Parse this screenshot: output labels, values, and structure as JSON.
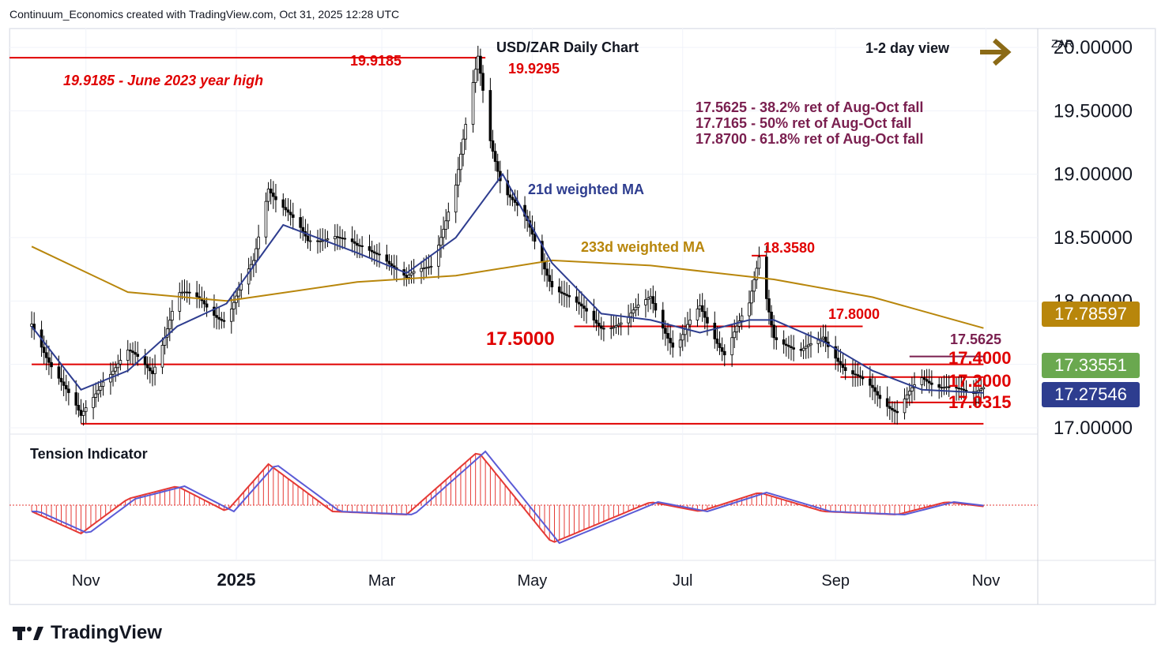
{
  "header": {
    "credit": "Continuum_Economics created with TradingView.com, Oct 31, 2025 12:28 UTC"
  },
  "chart": {
    "title": "USD/ZAR Daily Chart",
    "view_label": "1-2 day view",
    "currency": "ZAR",
    "annotations": {
      "high_value": "19.9185",
      "high_note": "19.9185 - June 2023 year high",
      "peak": "19.9295",
      "fib1": "17.5625 - 38.2% ret of Aug-Oct fall",
      "fib2": "17.7165 - 50% ret of Aug-Oct fall",
      "fib3": "17.8700 - 61.8% ret of Aug-Oct fall",
      "ma21_label": "21d weighted MA",
      "ma233_label": "233d weighted MA",
      "level_18358": "18.3580",
      "level_178": "17.8000",
      "level_175": "17.5000",
      "level_175625": "17.5625",
      "level_174": "17.4000",
      "level_172": "17.2000",
      "level_170315": "17.0315"
    },
    "price_badges": {
      "ma233": "17.78597",
      "last": "17.33551",
      "ma21": "17.27546"
    },
    "tension_label": "Tension Indicator"
  },
  "logo": {
    "text": "TradingView"
  },
  "colors": {
    "candle": "#000000",
    "ma21": "#2e3d8f",
    "ma233": "#b8860b",
    "levels": "#e00000",
    "fib_text": "#7a1f4f",
    "last_badge": "#6aa84f",
    "ma21_badge": "#2e3d8f",
    "ma233_badge": "#b8860b",
    "arrow": "#8b6a16",
    "tension_fill": "#e53935",
    "tension_line": "#5b5bd6"
  },
  "chart_data": {
    "type": "candlestick",
    "title": "USD/ZAR Daily Chart",
    "y_axis": {
      "ticks": [
        "20.00000",
        "19.50000",
        "19.00000",
        "18.50000",
        "18.00000",
        "17.50000",
        "17.00000"
      ],
      "ylim": [
        16.95,
        20.15
      ]
    },
    "x_axis": {
      "ticks": [
        "Nov",
        "2025",
        "Mar",
        "May",
        "Jul",
        "Sep",
        "Nov"
      ]
    },
    "series": [
      {
        "name": "USD/ZAR",
        "points": [
          [
            "2024-10-10",
            17.8
          ],
          [
            "2024-10-20",
            17.45
          ],
          [
            "2024-10-30",
            17.06
          ],
          [
            "2024-11-08",
            17.4
          ],
          [
            "2024-11-18",
            17.58
          ],
          [
            "2024-11-28",
            17.45
          ],
          [
            "2024-12-08",
            18.05
          ],
          [
            "2024-12-18",
            18.0
          ],
          [
            "2024-12-28",
            17.85
          ],
          [
            "2025-01-08",
            18.3
          ],
          [
            "2025-01-14",
            18.92
          ],
          [
            "2025-01-20",
            18.75
          ],
          [
            "2025-01-30",
            18.45
          ],
          [
            "2025-02-09",
            18.55
          ],
          [
            "2025-02-19",
            18.4
          ],
          [
            "2025-03-01",
            18.4
          ],
          [
            "2025-03-11",
            18.15
          ],
          [
            "2025-03-21",
            18.3
          ],
          [
            "2025-03-31",
            18.9
          ],
          [
            "2025-04-09",
            19.92
          ],
          [
            "2025-04-14",
            19.3
          ],
          [
            "2025-04-19",
            18.9
          ],
          [
            "2025-04-29",
            18.6
          ],
          [
            "2025-05-09",
            18.15
          ],
          [
            "2025-05-19",
            17.95
          ],
          [
            "2025-05-29",
            17.82
          ],
          [
            "2025-06-08",
            17.82
          ],
          [
            "2025-06-18",
            18.05
          ],
          [
            "2025-06-28",
            17.6
          ],
          [
            "2025-07-08",
            17.95
          ],
          [
            "2025-07-18",
            17.6
          ],
          [
            "2025-07-28",
            17.95
          ],
          [
            "2025-08-01",
            18.35
          ],
          [
            "2025-08-07",
            17.75
          ],
          [
            "2025-08-17",
            17.55
          ],
          [
            "2025-08-27",
            17.75
          ],
          [
            "2025-09-06",
            17.4
          ],
          [
            "2025-09-16",
            17.33
          ],
          [
            "2025-09-26",
            17.12
          ],
          [
            "2025-10-06",
            17.38
          ],
          [
            "2025-10-16",
            17.35
          ],
          [
            "2025-10-26",
            17.22
          ],
          [
            "2025-10-31",
            17.33
          ]
        ]
      },
      {
        "name": "21d weighted MA",
        "points": [
          [
            "2024-10-10",
            17.8
          ],
          [
            "2024-10-30",
            17.3
          ],
          [
            "2024-11-18",
            17.45
          ],
          [
            "2024-12-08",
            17.8
          ],
          [
            "2024-12-28",
            17.98
          ],
          [
            "2025-01-20",
            18.6
          ],
          [
            "2025-02-19",
            18.38
          ],
          [
            "2025-03-11",
            18.22
          ],
          [
            "2025-03-31",
            18.5
          ],
          [
            "2025-04-19",
            19.0
          ],
          [
            "2025-05-09",
            18.3
          ],
          [
            "2025-05-29",
            17.9
          ],
          [
            "2025-06-18",
            17.85
          ],
          [
            "2025-07-08",
            17.75
          ],
          [
            "2025-07-28",
            17.85
          ],
          [
            "2025-08-07",
            17.85
          ],
          [
            "2025-08-27",
            17.68
          ],
          [
            "2025-09-16",
            17.45
          ],
          [
            "2025-10-06",
            17.3
          ],
          [
            "2025-10-31",
            17.27546
          ]
        ]
      },
      {
        "name": "233d weighted MA",
        "points": [
          [
            "2024-10-10",
            18.43
          ],
          [
            "2024-11-18",
            18.07
          ],
          [
            "2024-12-28",
            18.0
          ],
          [
            "2025-02-19",
            18.15
          ],
          [
            "2025-03-31",
            18.2
          ],
          [
            "2025-05-09",
            18.32
          ],
          [
            "2025-06-18",
            18.28
          ],
          [
            "2025-08-07",
            18.17
          ],
          [
            "2025-09-16",
            18.03
          ],
          [
            "2025-10-31",
            17.78597
          ]
        ]
      }
    ],
    "levels": [
      19.9185,
      18.358,
      17.8,
      17.5625,
      17.5,
      17.4,
      17.2,
      17.0315
    ],
    "tension_indicator": {
      "name": "Tension Indicator",
      "points": [
        [
          "2024-10-10",
          -0.1
        ],
        [
          "2024-10-30",
          -0.45
        ],
        [
          "2024-11-18",
          0.1
        ],
        [
          "2024-12-08",
          0.3
        ],
        [
          "2024-12-28",
          -0.1
        ],
        [
          "2025-01-14",
          0.65
        ],
        [
          "2025-02-09",
          -0.1
        ],
        [
          "2025-03-11",
          -0.15
        ],
        [
          "2025-04-09",
          0.85
        ],
        [
          "2025-05-09",
          -0.6
        ],
        [
          "2025-06-18",
          0.05
        ],
        [
          "2025-07-08",
          -0.1
        ],
        [
          "2025-08-01",
          0.2
        ],
        [
          "2025-08-27",
          -0.1
        ],
        [
          "2025-09-26",
          -0.15
        ],
        [
          "2025-10-16",
          0.05
        ],
        [
          "2025-10-31",
          -0.02
        ]
      ]
    }
  }
}
